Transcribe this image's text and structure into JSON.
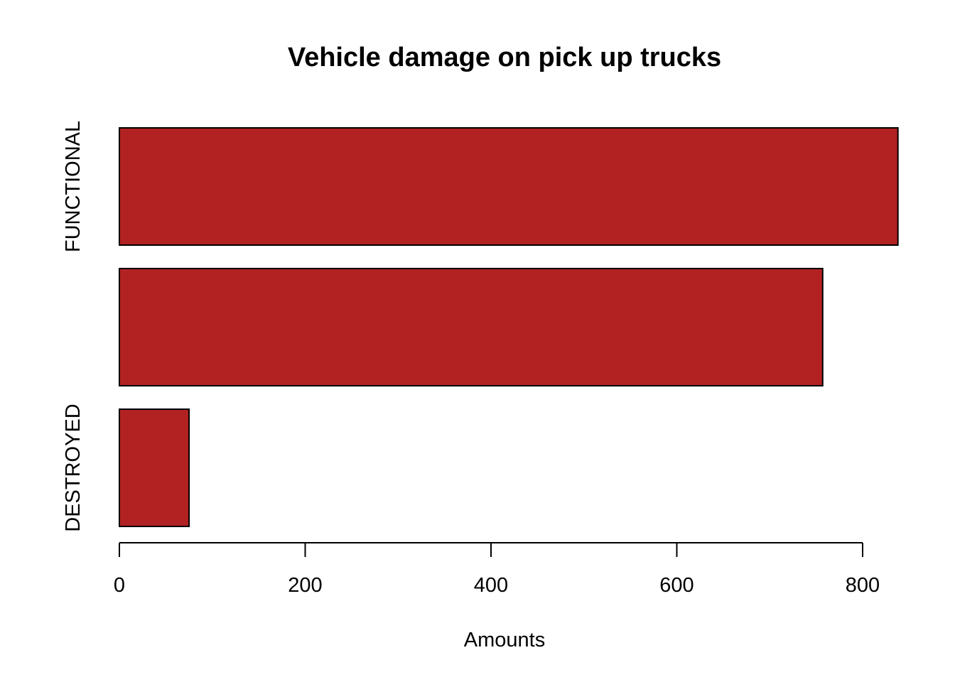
{
  "chart_data": {
    "type": "bar",
    "orientation": "horizontal",
    "title": "Vehicle damage on pick up trucks",
    "xlabel": "Amounts",
    "ylabel": "",
    "categories": [
      "FUNCTIONAL",
      "",
      "DESTROYED"
    ],
    "values": [
      838,
      757,
      75
    ],
    "xlim": [
      0,
      838
    ],
    "xticks": [
      0,
      200,
      400,
      600,
      800
    ],
    "grid": false,
    "bar_color": "#B22222",
    "border_color": "#000000"
  }
}
